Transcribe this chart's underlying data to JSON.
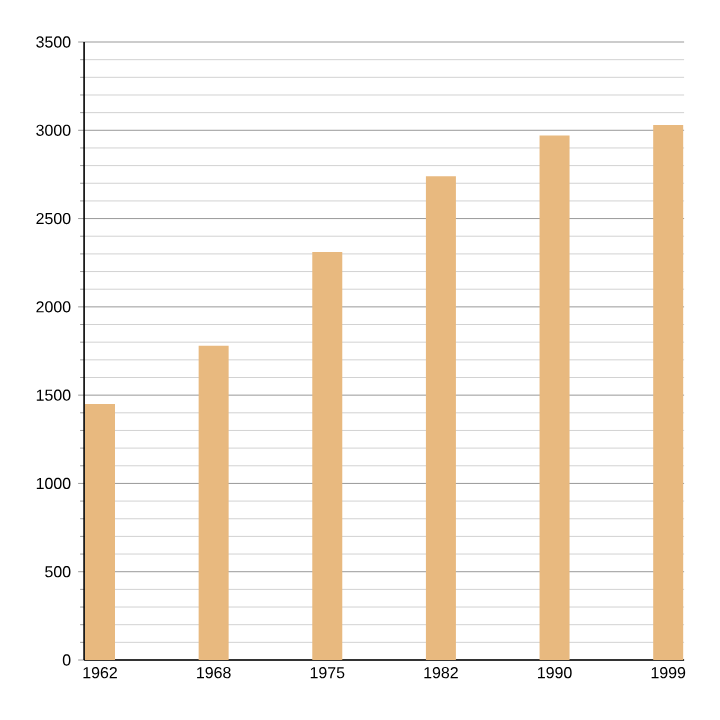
{
  "chart_data": {
    "type": "bar",
    "categories": [
      "1962",
      "1968",
      "1975",
      "1982",
      "1990",
      "1999"
    ],
    "values": [
      1450,
      1780,
      2310,
      2740,
      2970,
      3030
    ],
    "color": "#e8b97f",
    "ylim": [
      0,
      3500
    ],
    "yticks": [
      0,
      500,
      1000,
      1500,
      2000,
      2500,
      3000,
      3500
    ],
    "grid": "y"
  }
}
